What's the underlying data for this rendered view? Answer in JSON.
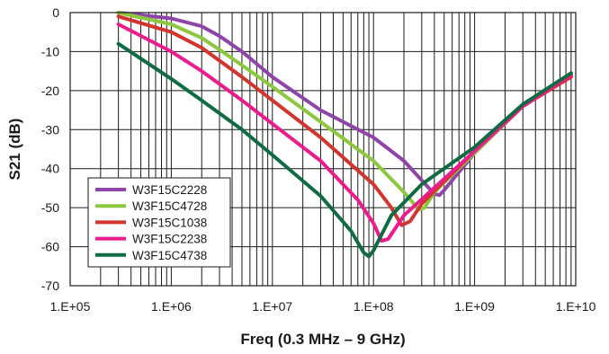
{
  "chart_data": {
    "type": "line",
    "title": "",
    "xlabel": "Freq (0.3 MHz – 9 GHz)",
    "ylabel": "S21 (dB)",
    "x_scale": "log",
    "xlim": [
      100000,
      10000000000
    ],
    "ylim": [
      -70,
      0
    ],
    "x_ticks": [
      100000,
      1000000,
      10000000,
      100000000,
      1000000000,
      10000000000
    ],
    "x_tick_labels": [
      "1.E+05",
      "1.E+06",
      "1.E+07",
      "1.E+08",
      "1.E+09",
      "1.E+10"
    ],
    "y_ticks": [
      0,
      -10,
      -20,
      -30,
      -40,
      -50,
      -60,
      -70
    ],
    "y_tick_labels": [
      "0",
      "-10",
      "-20",
      "-30",
      "-40",
      "-50",
      "-60",
      "-70"
    ],
    "grid": "vertical major and minor decade lines, horizontal lines every 10 dB",
    "legend_position": "lower-left",
    "series": [
      {
        "name": "W3F15C2228",
        "color": "#8e44a8",
        "points": [
          [
            300000,
            0
          ],
          [
            1000000,
            -1.5
          ],
          [
            2000000,
            -3.5
          ],
          [
            3000000,
            -6
          ],
          [
            5000000,
            -10
          ],
          [
            10000000,
            -16.5
          ],
          [
            30000000,
            -25
          ],
          [
            100000000,
            -32
          ],
          [
            200000000,
            -38
          ],
          [
            300000000,
            -43
          ],
          [
            400000000,
            -46.5
          ],
          [
            450000000,
            -46.8
          ],
          [
            500000000,
            -45.5
          ],
          [
            1000000000,
            -36
          ],
          [
            3000000000,
            -24
          ],
          [
            9000000000,
            -16
          ]
        ]
      },
      {
        "name": "W3F15C4728",
        "color": "#8dc63f",
        "points": [
          [
            300000,
            0
          ],
          [
            1000000,
            -3
          ],
          [
            2000000,
            -6.5
          ],
          [
            3000000,
            -9.5
          ],
          [
            5000000,
            -13.5
          ],
          [
            10000000,
            -19
          ],
          [
            30000000,
            -28
          ],
          [
            100000000,
            -38
          ],
          [
            200000000,
            -46
          ],
          [
            280000000,
            -50.5
          ],
          [
            320000000,
            -50
          ],
          [
            400000000,
            -46
          ],
          [
            1000000000,
            -36
          ],
          [
            3000000000,
            -24
          ],
          [
            9000000000,
            -16
          ]
        ]
      },
      {
        "name": "W3F15C1038",
        "color": "#d2352e",
        "points": [
          [
            300000,
            -1
          ],
          [
            1000000,
            -5
          ],
          [
            2000000,
            -9
          ],
          [
            5000000,
            -16.5
          ],
          [
            10000000,
            -22.5
          ],
          [
            30000000,
            -32
          ],
          [
            100000000,
            -44
          ],
          [
            150000000,
            -50
          ],
          [
            190000000,
            -54.5
          ],
          [
            230000000,
            -53.5
          ],
          [
            300000000,
            -49
          ],
          [
            1000000000,
            -35.5
          ],
          [
            3000000000,
            -24
          ],
          [
            9000000000,
            -16.5
          ]
        ]
      },
      {
        "name": "W3F15C2238",
        "color": "#ec1c8c",
        "points": [
          [
            300000,
            -3
          ],
          [
            1000000,
            -10
          ],
          [
            2000000,
            -15
          ],
          [
            5000000,
            -22.5
          ],
          [
            10000000,
            -28.5
          ],
          [
            30000000,
            -38
          ],
          [
            70000000,
            -48
          ],
          [
            100000000,
            -54
          ],
          [
            120000000,
            -58.5
          ],
          [
            140000000,
            -58
          ],
          [
            200000000,
            -52
          ],
          [
            1000000000,
            -35.5
          ],
          [
            3000000000,
            -24
          ],
          [
            9000000000,
            -16
          ]
        ]
      },
      {
        "name": "W3F15C4738",
        "color": "#0e6b42",
        "points": [
          [
            300000,
            -8
          ],
          [
            1000000,
            -17
          ],
          [
            2000000,
            -22.5
          ],
          [
            5000000,
            -30
          ],
          [
            10000000,
            -36.5
          ],
          [
            30000000,
            -47
          ],
          [
            60000000,
            -56
          ],
          [
            80000000,
            -61.5
          ],
          [
            90000000,
            -62.5
          ],
          [
            100000000,
            -61
          ],
          [
            150000000,
            -52
          ],
          [
            300000000,
            -44
          ],
          [
            1000000000,
            -34.5
          ],
          [
            3000000000,
            -23.5
          ],
          [
            9000000000,
            -15.5
          ]
        ]
      }
    ]
  }
}
